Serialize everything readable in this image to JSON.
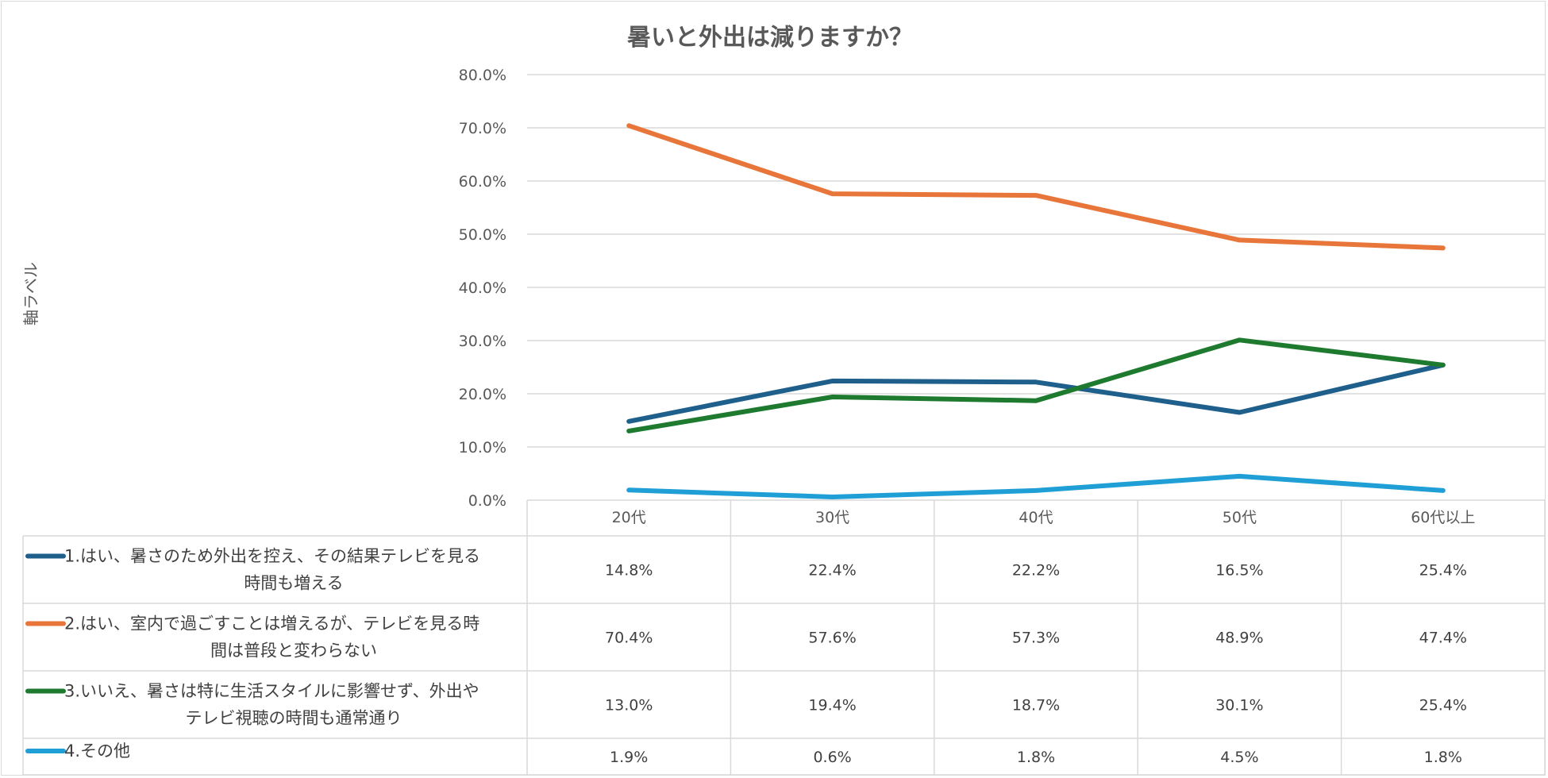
{
  "chart_data": {
    "type": "line",
    "title": "暑いと外出は減りますか？",
    "ylabel": "軸ラベル",
    "xlabel": "",
    "ylim": [
      0,
      80
    ],
    "yticks": [
      "0.0%",
      "10.0%",
      "20.0%",
      "30.0%",
      "40.0%",
      "50.0%",
      "60.0%",
      "70.0%",
      "80.0%"
    ],
    "categories": [
      "20代",
      "30代",
      "40代",
      "50代",
      "60代以上"
    ],
    "grid": true,
    "data_table": true,
    "series": [
      {
        "name": "1.はい、暑さのため外出を控え、その結果テレビを見る時間も増える",
        "label_lines": [
          "1.はい、暑さのため外出を控え、その結果テレビを見る",
          "時間も増える"
        ],
        "color": "#1f5f8b",
        "values": [
          14.8,
          22.4,
          22.2,
          16.5,
          25.4
        ],
        "labels": [
          "14.8%",
          "22.4%",
          "22.2%",
          "16.5%",
          "25.4%"
        ]
      },
      {
        "name": "2.はい、室内で過ごすことは増えるが、テレビを見る時間は普段と変わらない",
        "label_lines": [
          "2.はい、室内で過ごすことは増えるが、テレビを見る時",
          "間は普段と変わらない"
        ],
        "color": "#e8763a",
        "values": [
          70.4,
          57.6,
          57.3,
          48.9,
          47.4
        ],
        "labels": [
          "70.4%",
          "57.6%",
          "57.3%",
          "48.9%",
          "47.4%"
        ]
      },
      {
        "name": "3.いいえ、暑さは特に生活スタイルに影響せず、外出やテレビ視聴の時間も通常通り",
        "label_lines": [
          "3.いいえ、暑さは特に生活スタイルに影響せず、外出や",
          "テレビ視聴の時間も通常通り"
        ],
        "color": "#1e7a2e",
        "values": [
          13.0,
          19.4,
          18.7,
          30.1,
          25.4
        ],
        "labels": [
          "13.0%",
          "19.4%",
          "18.7%",
          "30.1%",
          "25.4%"
        ]
      },
      {
        "name": "4.その他",
        "label_lines": [
          "4.その他"
        ],
        "color": "#1f9fd6",
        "values": [
          1.9,
          0.6,
          1.8,
          4.5,
          1.8
        ],
        "labels": [
          "1.9%",
          "0.6%",
          "1.8%",
          "4.5%",
          "1.8%"
        ]
      }
    ]
  }
}
